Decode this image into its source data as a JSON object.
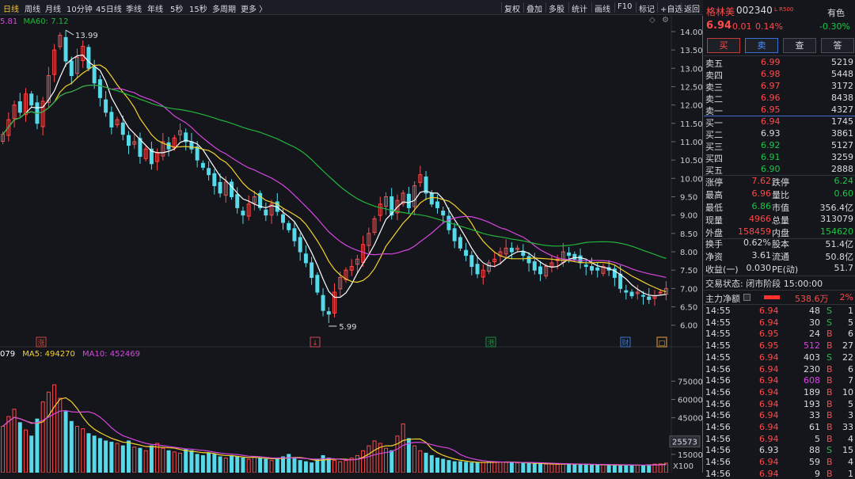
{
  "toolbar": {
    "left_items": [
      "日线",
      "周线",
      "月线",
      "10分钟",
      "45日线",
      "季线",
      "年线",
      "5秒",
      "15秒",
      "多周期",
      "更多 〉"
    ],
    "active": "日线",
    "right_items": [
      "复权",
      "叠加",
      "多股",
      "统计",
      "画线",
      "F10",
      "标记",
      "+自选",
      "返回"
    ]
  },
  "indicators": {
    "ma_prefix": "5.81",
    "ma60": "MA60: 7.12",
    "vol_prefix": "079",
    "vol_ma5": "MA5: 494270",
    "vol_ma10": "MA10: 452469"
  },
  "annotations": {
    "high_label": "13.99",
    "low_label": "5.99",
    "vol_marker": "25573",
    "vol_unit": "X100"
  },
  "price_axis": [
    "14.00",
    "13.50",
    "13.00",
    "12.50",
    "12.00",
    "11.50",
    "11.00",
    "10.50",
    "10.00",
    "9.50",
    "9.00",
    "8.50",
    "8.00",
    "7.50",
    "7.00",
    "6.50",
    "6.00"
  ],
  "volume_axis": [
    "75000",
    "60000",
    "45000",
    "15000"
  ],
  "event_markers": [
    {
      "glyph": "涨",
      "color": "#c8463c"
    },
    {
      "glyph": "↓",
      "color": "#d24b4b"
    },
    {
      "glyph": "港",
      "color": "#1c8a3a"
    },
    {
      "glyph": "财",
      "color": "#3c78c8"
    },
    {
      "glyph": "□",
      "color": "#e6a03c"
    }
  ],
  "chart_data": {
    "type": "candlestick",
    "price_range": [
      5.8,
      14.3
    ],
    "series_colors": {
      "up": "#ff4a4a",
      "down": "#56d9e8",
      "ma5": "#ffffff",
      "ma10": "#f5d22c",
      "ma20": "#d847e0",
      "ma60": "#23b53a"
    },
    "closes": [
      11.2,
      11.6,
      12.0,
      11.8,
      12.3,
      12.0,
      11.5,
      12.1,
      12.8,
      13.5,
      13.9,
      13.2,
      12.8,
      13.3,
      13.6,
      13.0,
      12.6,
      12.2,
      11.8,
      11.4,
      11.6,
      11.2,
      10.9,
      11.0,
      10.6,
      10.8,
      10.4,
      10.7,
      11.0,
      10.8,
      11.1,
      11.3,
      11.0,
      10.8,
      10.5,
      10.3,
      10.1,
      9.8,
      9.6,
      9.9,
      9.5,
      9.2,
      9.0,
      9.3,
      9.5,
      9.2,
      9.0,
      9.3,
      9.1,
      8.8,
      8.6,
      8.3,
      8.0,
      7.7,
      7.3,
      6.9,
      6.4,
      6.3,
      6.9,
      7.3,
      7.5,
      7.6,
      7.8,
      8.2,
      8.5,
      8.9,
      9.3,
      9.5,
      9.0,
      9.4,
      9.6,
      9.2,
      9.8,
      10.1,
      9.6,
      9.3,
      9.2,
      9.0,
      8.6,
      8.3,
      8.1,
      7.9,
      7.6,
      7.4,
      7.5,
      7.7,
      7.8,
      8.0,
      8.1,
      8.0,
      8.1,
      7.9,
      7.7,
      7.5,
      7.4,
      7.6,
      7.7,
      7.8,
      8.0,
      7.9,
      7.8,
      7.7,
      7.6,
      7.5,
      7.5,
      7.6,
      7.5,
      7.3,
      7.0,
      6.9,
      6.8,
      6.9,
      6.8,
      6.7,
      6.8,
      6.9,
      7.0
    ],
    "volumes": [
      38000,
      46000,
      52000,
      41000,
      35000,
      30000,
      44000,
      58000,
      66000,
      72000,
      61000,
      50000,
      42000,
      38000,
      36000,
      32000,
      30000,
      28000,
      26000,
      25000,
      24000,
      22000,
      26000,
      21000,
      20000,
      18000,
      22000,
      24000,
      20000,
      18000,
      17000,
      16000,
      19000,
      18000,
      15000,
      14000,
      16000,
      15000,
      13000,
      12000,
      14000,
      13000,
      12000,
      11000,
      13000,
      12000,
      11000,
      10000,
      12000,
      13000,
      15000,
      12000,
      10000,
      9000,
      8000,
      11000,
      14000,
      12000,
      10000,
      9000,
      10000,
      12000,
      14000,
      18000,
      22000,
      26000,
      24000,
      20000,
      18000,
      30000,
      40000,
      28000,
      22000,
      18000,
      16000,
      14000,
      12000,
      11000,
      10000,
      9000,
      9000,
      8500,
      8000,
      8000,
      8500,
      9000,
      9000,
      8800,
      8500,
      8200,
      8000,
      7800,
      7500,
      7300,
      7200,
      7000,
      7000,
      6800,
      7000,
      7200,
      7000,
      6800,
      6500,
      6300,
      6200,
      6500,
      6400,
      6200,
      6000,
      6100,
      6300,
      6200,
      6000,
      6500,
      7000,
      7200,
      7800
    ]
  },
  "side": {
    "name": "格林美",
    "code": "002340",
    "badge": "L R500",
    "sector": "有色",
    "price": "6.94",
    "change": "0.01",
    "change_pct": "0.14%",
    "sector_pct": "-0.30%",
    "buttons": [
      "买",
      "卖",
      "查",
      "答"
    ],
    "sell": [
      {
        "label": "卖五",
        "price": "6.99",
        "vol": "5219"
      },
      {
        "label": "卖四",
        "price": "6.98",
        "vol": "5448"
      },
      {
        "label": "卖三",
        "price": "6.97",
        "vol": "3172"
      },
      {
        "label": "卖二",
        "price": "6.96",
        "vol": "8438"
      },
      {
        "label": "卖一",
        "price": "6.95",
        "vol": "4327"
      }
    ],
    "buy": [
      {
        "label": "买一",
        "price": "6.94",
        "vol": "1745",
        "pc": "r"
      },
      {
        "label": "买二",
        "price": "6.93",
        "vol": "3861",
        "pc": "w"
      },
      {
        "label": "买三",
        "price": "6.92",
        "vol": "5127",
        "pc": "g"
      },
      {
        "label": "买四",
        "price": "6.91",
        "vol": "3259",
        "pc": "g"
      },
      {
        "label": "买五",
        "price": "6.90",
        "vol": "2888",
        "pc": "g"
      }
    ],
    "stats": [
      {
        "l": "涨停",
        "v": "7.62",
        "vc": "r",
        "l2": "跌停",
        "v2": "6.24",
        "v2c": "g"
      },
      {
        "l": "最高",
        "v": "6.96",
        "vc": "r",
        "l2": "量比",
        "v2": "0.60",
        "v2c": "g"
      },
      {
        "l": "最低",
        "v": "6.86",
        "vc": "g",
        "l2": "市值",
        "v2": "356.4亿",
        "v2c": "w"
      },
      {
        "l": "现量",
        "v": "4966",
        "vc": "r",
        "l2": "总量",
        "v2": "313079",
        "v2c": "w"
      },
      {
        "l": "外盘",
        "v": "158459",
        "vc": "r",
        "l2": "内盘",
        "v2": "154620",
        "v2c": "g"
      }
    ],
    "stats2": [
      {
        "l": "换手",
        "v": "0.62%",
        "l2": "股本",
        "v2": "51.4亿"
      },
      {
        "l": "净资",
        "v": "3.61",
        "l2": "流通",
        "v2": "50.8亿"
      },
      {
        "l": "收益(一)",
        "v": "0.030",
        "l2": "PE(动)",
        "v2": "51.7"
      }
    ],
    "status": "交易状态: 闭市阶段 15:00:00",
    "netflow_label": "主力净额",
    "netflow_value": "538.6万",
    "netflow_pct": "2%",
    "ticks": [
      {
        "t": "14:55",
        "p": "6.94",
        "pc": "r",
        "v": "48",
        "vc": "w",
        "s": "S",
        "sc": "g",
        "n": "1"
      },
      {
        "t": "14:55",
        "p": "6.94",
        "pc": "r",
        "v": "30",
        "vc": "w",
        "s": "S",
        "sc": "g",
        "n": "5"
      },
      {
        "t": "14:55",
        "p": "6.95",
        "pc": "r",
        "v": "24",
        "vc": "w",
        "s": "B",
        "sc": "r",
        "n": "6"
      },
      {
        "t": "14:55",
        "p": "6.95",
        "pc": "r",
        "v": "512",
        "vc": "p",
        "s": "B",
        "sc": "r",
        "n": "27"
      },
      {
        "t": "14:55",
        "p": "6.94",
        "pc": "r",
        "v": "403",
        "vc": "w",
        "s": "S",
        "sc": "g",
        "n": "22"
      },
      {
        "t": "14:56",
        "p": "6.94",
        "pc": "r",
        "v": "230",
        "vc": "w",
        "s": "B",
        "sc": "r",
        "n": "6"
      },
      {
        "t": "14:56",
        "p": "6.94",
        "pc": "r",
        "v": "608",
        "vc": "p",
        "s": "B",
        "sc": "r",
        "n": "7"
      },
      {
        "t": "14:56",
        "p": "6.94",
        "pc": "r",
        "v": "189",
        "vc": "w",
        "s": "B",
        "sc": "r",
        "n": "10"
      },
      {
        "t": "14:56",
        "p": "6.94",
        "pc": "r",
        "v": "193",
        "vc": "w",
        "s": "B",
        "sc": "r",
        "n": "5"
      },
      {
        "t": "14:56",
        "p": "6.94",
        "pc": "r",
        "v": "33",
        "vc": "w",
        "s": "B",
        "sc": "r",
        "n": "3"
      },
      {
        "t": "14:56",
        "p": "6.94",
        "pc": "r",
        "v": "61",
        "vc": "w",
        "s": "B",
        "sc": "r",
        "n": "33"
      },
      {
        "t": "14:56",
        "p": "6.94",
        "pc": "r",
        "v": "5",
        "vc": "w",
        "s": "B",
        "sc": "r",
        "n": "4"
      },
      {
        "t": "14:56",
        "p": "6.93",
        "pc": "w",
        "v": "88",
        "vc": "w",
        "s": "S",
        "sc": "g",
        "n": "15"
      },
      {
        "t": "14:56",
        "p": "6.94",
        "pc": "r",
        "v": "59",
        "vc": "w",
        "s": "B",
        "sc": "r",
        "n": "4"
      },
      {
        "t": "14:56",
        "p": "6.94",
        "pc": "r",
        "v": "9",
        "vc": "w",
        "s": "B",
        "sc": "r",
        "n": "1"
      }
    ]
  }
}
